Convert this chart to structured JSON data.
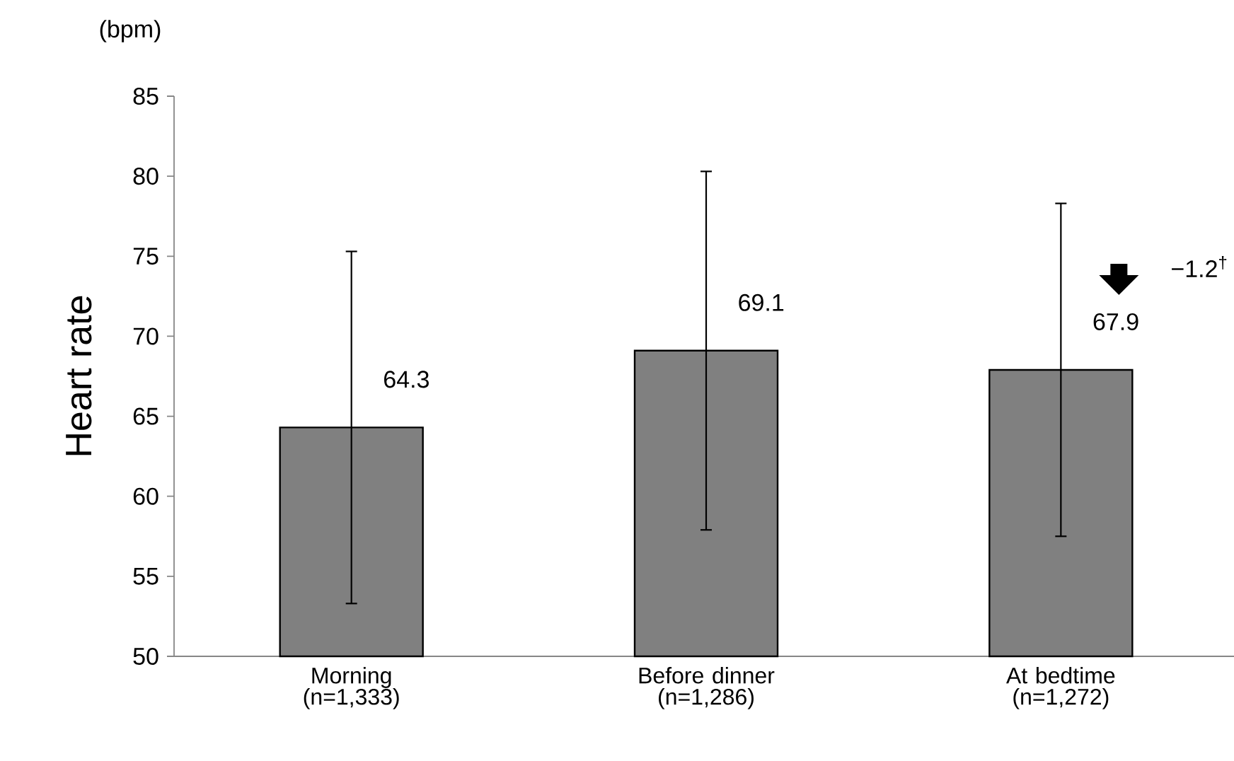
{
  "chart_data": {
    "type": "bar",
    "ylabel": "Heart rate",
    "categories": [
      "Morning (n=1,333)",
      "Before dinner (n=1,286)",
      "At bedtime (n=1,272)"
    ],
    "values": [
      64.3,
      69.1,
      67.9
    ],
    "errors": [
      11.0,
      11.2,
      10.4
    ],
    "color": "#808080",
    "ylim": [
      50,
      85
    ],
    "yticks": [
      50,
      55,
      60,
      65,
      70,
      75,
      80,
      85
    ],
    "data_labels": true,
    "grid": false,
    "annotations": [
      "(bpm)",
      "−1.2$^{†}$"
    ]
  }
}
